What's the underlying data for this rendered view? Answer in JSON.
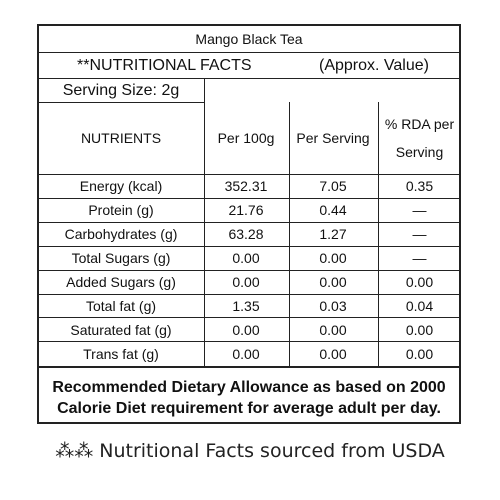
{
  "title": "Mango Black Tea",
  "facts_header": "**NUTRITIONAL FACTS",
  "approx_label": "(Approx. Value)",
  "serving_size": "Serving Size: 2g",
  "columns": {
    "nutrients": "NUTRIENTS",
    "per_100g": "Per 100g",
    "per_serving": "Per Serving",
    "rda_line1": "% RDA per",
    "rda_line2": "Serving"
  },
  "rows": [
    {
      "name": "Energy (kcal)",
      "per_100g": "352.31",
      "per_serving": "7.05",
      "rda": "0.35"
    },
    {
      "name": "Protein (g)",
      "per_100g": "21.76",
      "per_serving": "0.44",
      "rda": "—"
    },
    {
      "name": "Carbohydrates (g)",
      "per_100g": "63.28",
      "per_serving": "1.27",
      "rda": "—"
    },
    {
      "name": "Total Sugars (g)",
      "per_100g": "0.00",
      "per_serving": "0.00",
      "rda": "—"
    },
    {
      "name": "Added Sugars (g)",
      "per_100g": "0.00",
      "per_serving": "0.00",
      "rda": "0.00"
    },
    {
      "name": "Total fat (g)",
      "per_100g": "1.35",
      "per_serving": "0.03",
      "rda": "0.04"
    },
    {
      "name": "Saturated fat (g)",
      "per_100g": "0.00",
      "per_serving": "0.00",
      "rda": "0.00"
    },
    {
      "name": "Trans fat (g)",
      "per_100g": "0.00",
      "per_serving": "0.00",
      "rda": "0.00"
    }
  ],
  "footer": {
    "line1": "Recommended Dietary Allowance as based on 2000",
    "line2": "Calorie Diet requirement for average adult per day."
  },
  "source_note": "⁂⁂ Nutritional Facts sourced from USDA"
}
